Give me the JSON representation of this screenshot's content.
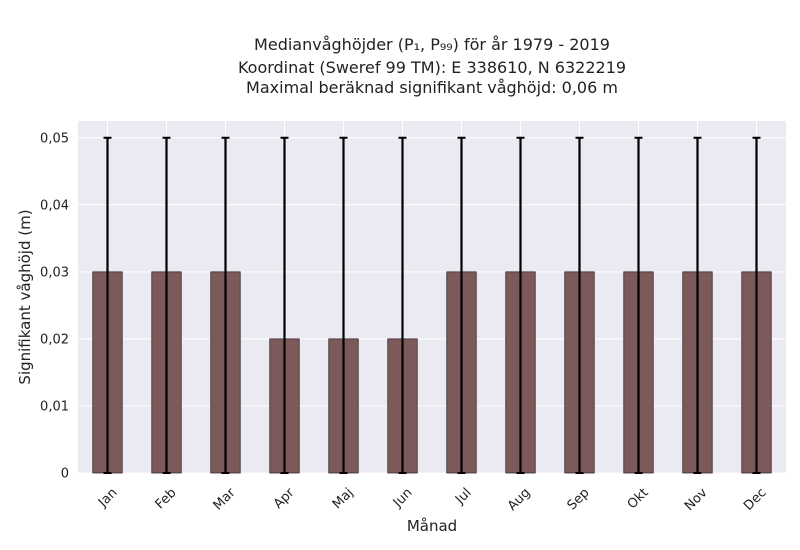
{
  "chart_data": {
    "type": "bar",
    "title_lines": [
      "Medianvåghöjder (P₁, P₉₉) för år 1979 - 2019",
      "Koordinat (Sweref 99 TM): E 338610, N 6322219",
      "Maximal beräknad signifikant våghöjd: 0,06 m"
    ],
    "xlabel": "Månad",
    "ylabel": "Signifikant våghöjd (m)",
    "categories": [
      "Jan",
      "Feb",
      "Mar",
      "Apr",
      "Maj",
      "Jun",
      "Jul",
      "Aug",
      "Sep",
      "Okt",
      "Nov",
      "Dec"
    ],
    "values": [
      0.03,
      0.03,
      0.03,
      0.02,
      0.02,
      0.02,
      0.03,
      0.03,
      0.03,
      0.03,
      0.03,
      0.03
    ],
    "error_low": [
      0,
      0,
      0,
      0,
      0,
      0,
      0,
      0,
      0,
      0,
      0,
      0
    ],
    "error_high": [
      0.05,
      0.05,
      0.05,
      0.05,
      0.05,
      0.05,
      0.05,
      0.05,
      0.05,
      0.05,
      0.05,
      0.05
    ],
    "yticks": [
      0,
      0.01,
      0.02,
      0.03,
      0.04,
      0.05
    ],
    "ytick_labels": [
      "0",
      "0,01",
      "0,02",
      "0,03",
      "0,04",
      "0,05"
    ],
    "ylim": [
      0,
      0.0525
    ],
    "grid": true,
    "colors": {
      "bar": "#7d5a5a",
      "bar_edge": "#3a2a2a",
      "plot_bg": "#eaeaf2",
      "grid": "#ffffff",
      "error": "#000000"
    }
  }
}
